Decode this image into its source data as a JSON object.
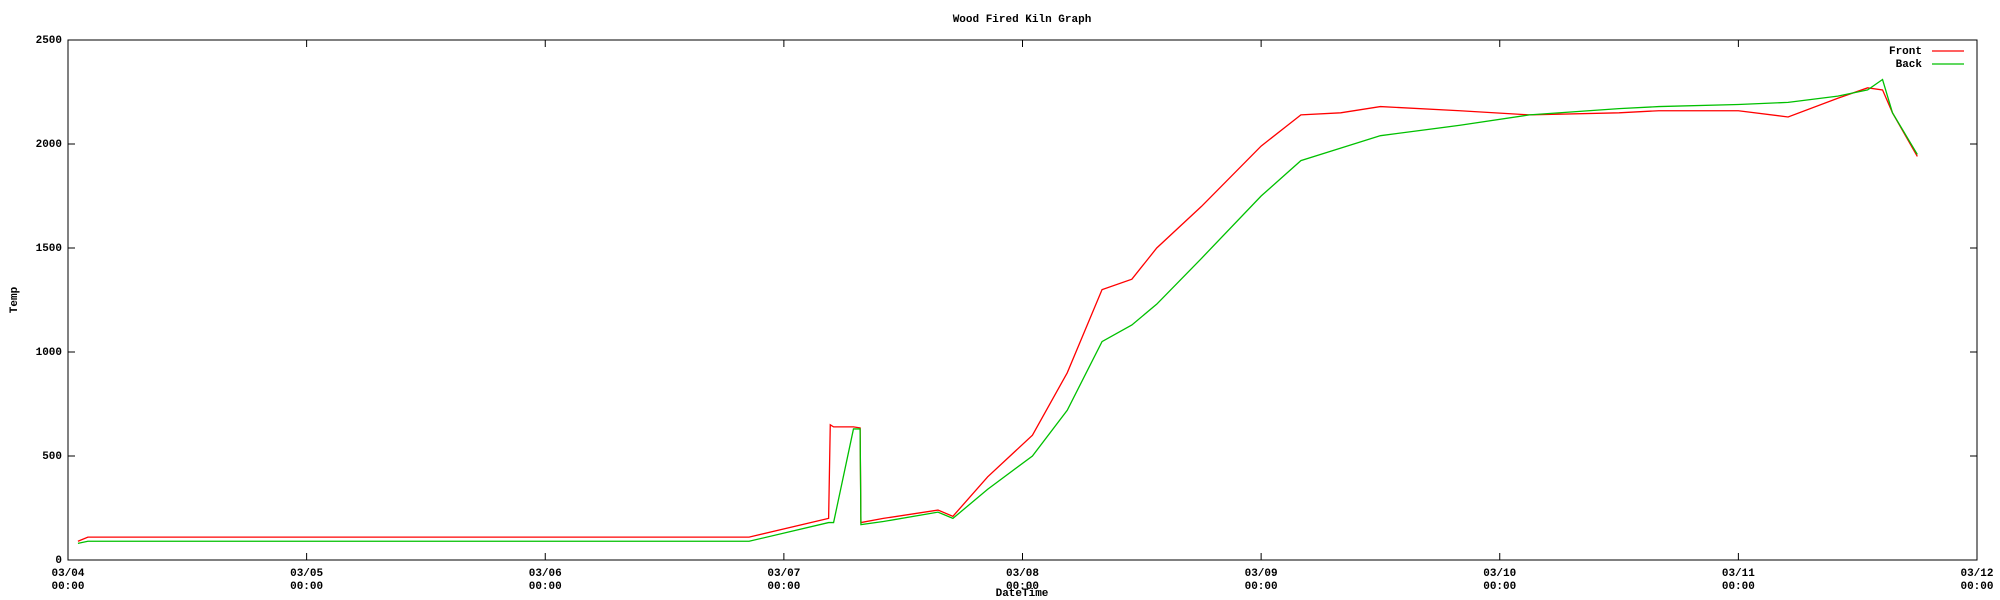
{
  "chart_data": {
    "type": "line",
    "title": "Wood Fired Kiln Graph",
    "x_label": "DateTime",
    "y_label": "Temp",
    "x": [
      "03/04 01:00",
      "03/04 02:00",
      "03/06 20:30",
      "03/07 04:30",
      "03/07 04:40",
      "03/07 05:00",
      "03/07 07:00",
      "03/07 07:40",
      "03/07 07:45",
      "03/07 10:00",
      "03/07 15:30",
      "03/07 17:00",
      "03/07 20:30",
      "03/08 01:00",
      "03/08 04:30",
      "03/08 08:00",
      "03/08 11:00",
      "03/08 13:30",
      "03/08 18:00",
      "03/09 00:00",
      "03/09 04:00",
      "03/09 08:00",
      "03/09 12:00",
      "03/09 20:00",
      "03/10 03:00",
      "03/10 12:00",
      "03/10 16:00",
      "03/11 00:00",
      "03/11 05:00",
      "03/11 10:00",
      "03/11 13:00",
      "03/11 14:30",
      "03/11 15:30",
      "03/11 18:00"
    ],
    "series": [
      {
        "name": "Front",
        "color": "#ff0000",
        "values": [
          90,
          110,
          110,
          200,
          650,
          640,
          640,
          635,
          180,
          200,
          240,
          210,
          400,
          600,
          900,
          1300,
          1350,
          1500,
          1700,
          1990,
          2140,
          2150,
          2180,
          2160,
          2140,
          2150,
          2160,
          2160,
          2130,
          2220,
          2270,
          2260,
          2150,
          1940
        ]
      },
      {
        "name": "Back",
        "color": "#00c000",
        "values": [
          80,
          90,
          90,
          180,
          180,
          180,
          630,
          630,
          170,
          185,
          230,
          200,
          340,
          500,
          720,
          1050,
          1130,
          1230,
          1450,
          1750,
          1920,
          1980,
          2040,
          2090,
          2140,
          2170,
          2180,
          2190,
          2200,
          2230,
          2260,
          2310,
          2150,
          1950
        ]
      }
    ],
    "xlim": [
      "03/04\n00:00",
      "03/12\n00:00"
    ],
    "xticks": [
      "03/04\n00:00",
      "03/05\n00:00",
      "03/06\n00:00",
      "03/07\n00:00",
      "03/08\n00:00",
      "03/09\n00:00",
      "03/10\n00:00",
      "03/11\n00:00",
      "03/12\n00:00"
    ],
    "ylim": [
      0,
      2500
    ],
    "yticks": [
      0,
      500,
      1000,
      1500,
      2000,
      2500
    ],
    "grid": false,
    "legend": "top-right"
  }
}
